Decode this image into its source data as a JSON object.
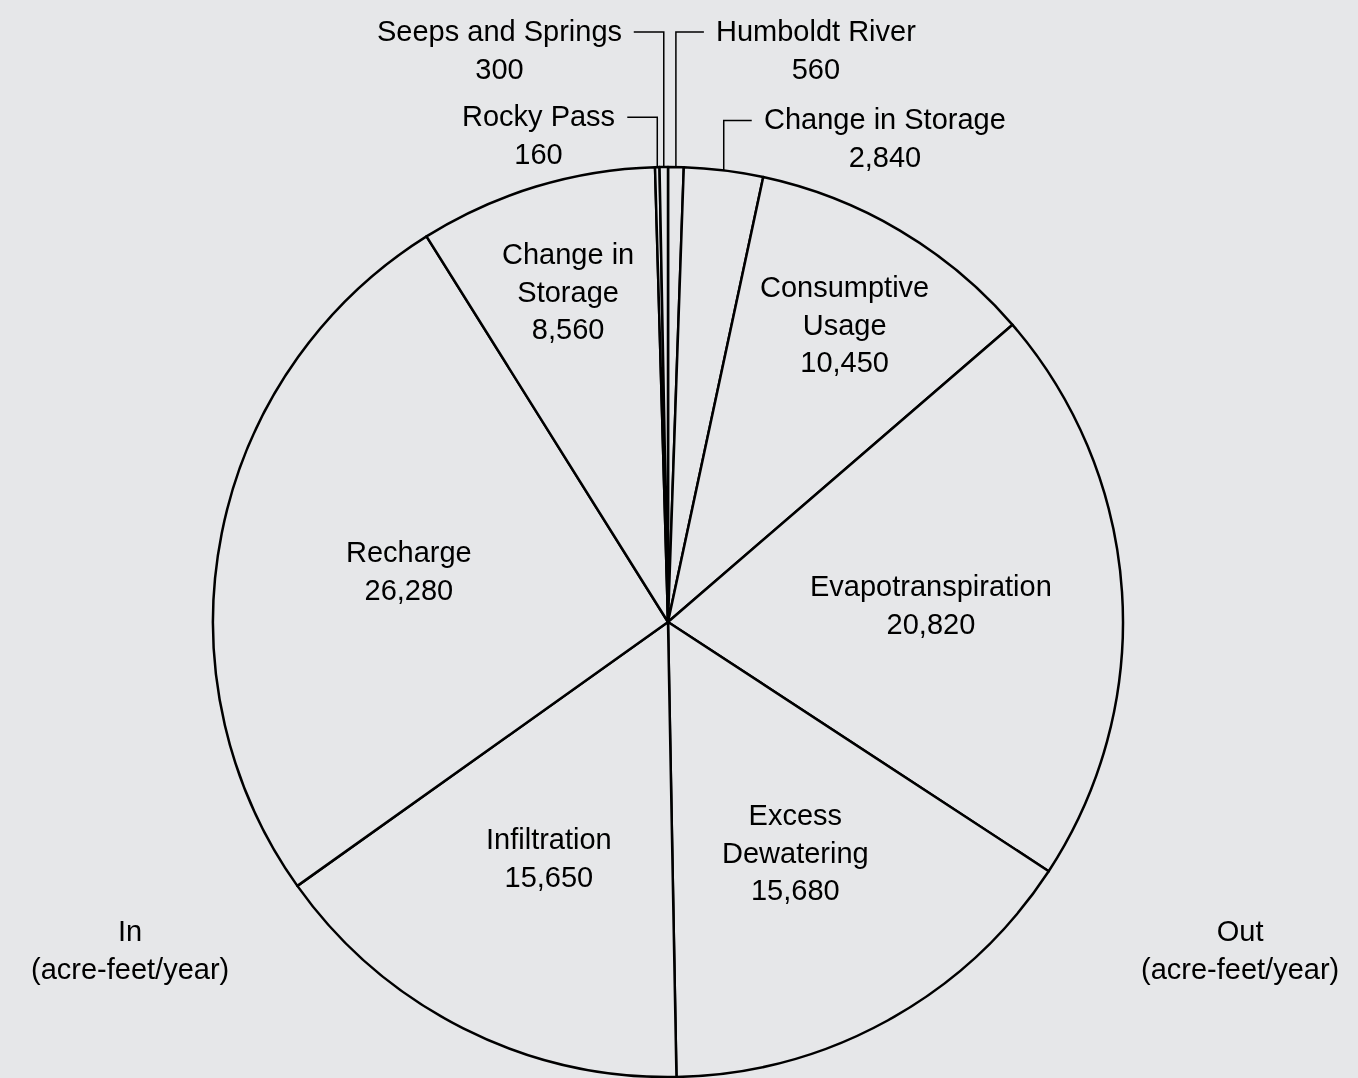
{
  "chart_data": {
    "type": "pie",
    "categories": [
      "Humboldt River",
      "Change in Storage",
      "Consumptive Usage",
      "Evapotranspiration",
      "Excess Dewatering",
      "Infiltration",
      "Recharge",
      "Change in Storage",
      "Rocky Pass",
      "Seeps and Springs"
    ],
    "values": [
      560,
      2840,
      10450,
      20820,
      15680,
      15650,
      26280,
      8560,
      160,
      300
    ],
    "value_labels": [
      "560",
      "2,840",
      "10,450",
      "20,820",
      "15,680",
      "15,650",
      "26,280",
      "8,560",
      "160",
      "300"
    ],
    "colors": [
      "#e6e7e9",
      "#e6e7e9",
      "#e6e7e9",
      "#e6e7e9",
      "#e6e7e9",
      "#e6e7e9",
      "#e6e7e9",
      "#e6e7e9",
      "#e6e7e9",
      "#e6e7e9"
    ],
    "annotations": [
      "In\n(acre-feet/year)",
      "Out\n(acre-feet/year)"
    ]
  }
}
